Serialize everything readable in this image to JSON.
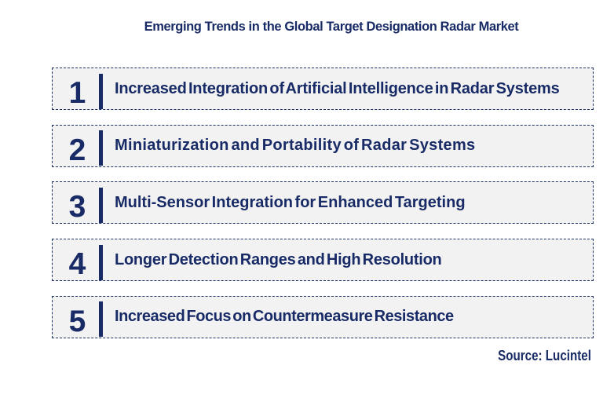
{
  "title": "Emerging Trends in the Global Target Designation Radar Market",
  "accent_color": "#182b66",
  "row_background": "#f2f2f2",
  "trends": [
    {
      "number": "1",
      "label": "Increased Integration of Artificial Intelligence in Radar Systems"
    },
    {
      "number": "2",
      "label": "Miniaturization and Portability of Radar Systems"
    },
    {
      "number": "3",
      "label": "Multi-Sensor Integration for Enhanced Targeting"
    },
    {
      "number": "4",
      "label": "Longer Detection Ranges and High Resolution"
    },
    {
      "number": "5",
      "label": "Increased Focus on Countermeasure Resistance"
    }
  ],
  "source": "Source: Lucintel"
}
